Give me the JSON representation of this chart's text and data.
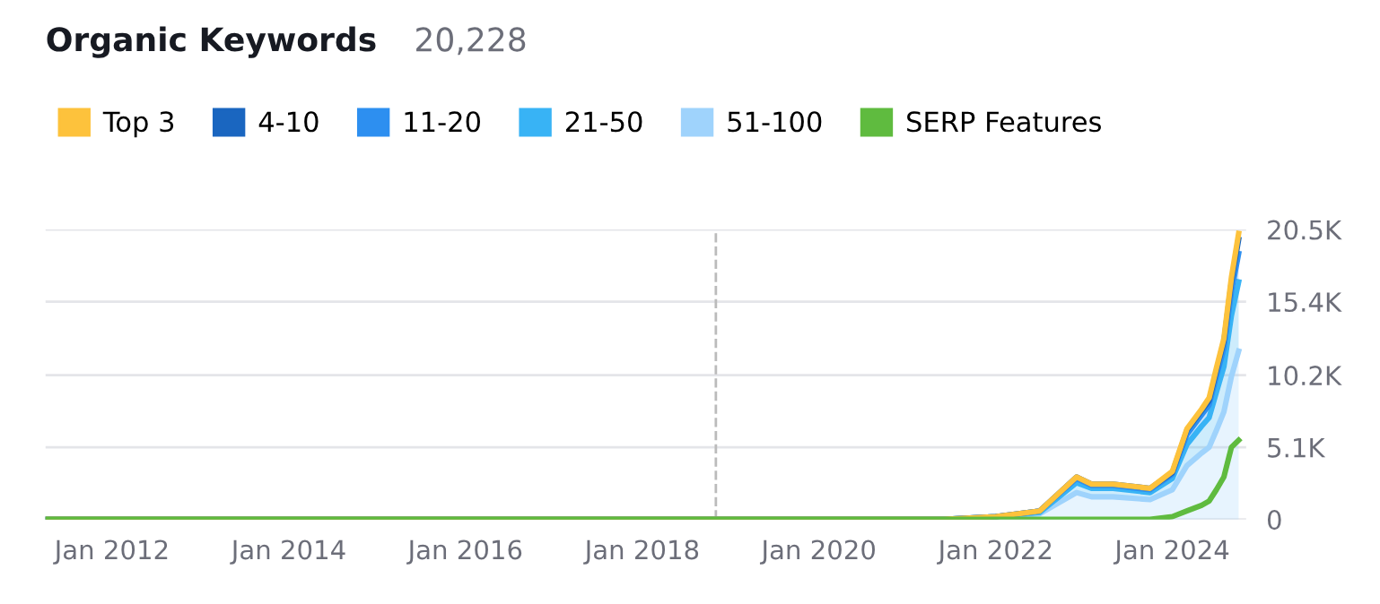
{
  "chart_data": {
    "type": "area",
    "title": "Organic Keywords",
    "subtitle": "20,228",
    "stacked": true,
    "x": [
      "2011-04",
      "2016-06",
      "2021-06",
      "2022-01",
      "2022-07",
      "2022-12",
      "2023-02",
      "2023-05",
      "2023-10",
      "2024-01",
      "2024-03",
      "2024-05",
      "2024-06",
      "2024-07",
      "2024-08",
      "2024-09",
      "2024-10"
    ],
    "series": [
      {
        "name": "51-100",
        "color": "#9fd3fc",
        "values": [
          0,
          0,
          0,
          200,
          400,
          1900,
          1600,
          1600,
          1400,
          2100,
          3800,
          4700,
          5100,
          6300,
          7600,
          10100,
          11900
        ]
      },
      {
        "name": "21-50",
        "color": "#38b3f5",
        "values": [
          0,
          0,
          0,
          0,
          100,
          700,
          600,
          600,
          500,
          800,
          1500,
          1900,
          2100,
          2700,
          3200,
          4300,
          4900
        ]
      },
      {
        "name": "11-20",
        "color": "#2d8ff0",
        "values": [
          0,
          0,
          0,
          0,
          100,
          300,
          200,
          200,
          200,
          300,
          700,
          800,
          900,
          1100,
          1300,
          1700,
          2000
        ]
      },
      {
        "name": "4-10",
        "color": "#1a66c0",
        "values": [
          0,
          0,
          0,
          0,
          0,
          100,
          100,
          100,
          100,
          100,
          300,
          300,
          300,
          400,
          500,
          700,
          1000
        ]
      },
      {
        "name": "Top 3",
        "color": "#fdc23c",
        "values": [
          0,
          0,
          0,
          0,
          0,
          0,
          0,
          0,
          0,
          100,
          100,
          100,
          200,
          200,
          200,
          300,
          428
        ]
      },
      {
        "name": "SERP Features",
        "type": "line",
        "color": "#5fbb3f",
        "values": [
          0,
          0,
          0,
          0,
          0,
          0,
          0,
          0,
          0,
          200,
          600,
          1000,
          1300,
          2100,
          3000,
          5100,
          5600
        ]
      }
    ],
    "xlim": [
      "2011-04",
      "2024-11"
    ],
    "xticks": [
      {
        "value": "2012-01",
        "label": "Jan 2012"
      },
      {
        "value": "2014-01",
        "label": "Jan 2014"
      },
      {
        "value": "2016-01",
        "label": "Jan 2016"
      },
      {
        "value": "2018-01",
        "label": "Jan 2018"
      },
      {
        "value": "2020-01",
        "label": "Jan 2020"
      },
      {
        "value": "2022-01",
        "label": "Jan 2022"
      },
      {
        "value": "2024-01",
        "label": "Jan 2024"
      }
    ],
    "ylim": [
      0,
      20500
    ],
    "yticks": [
      0,
      {
        "value": 5100,
        "label": "5.1K"
      },
      {
        "value": 10200,
        "label": "10.2K"
      },
      {
        "value": 15400,
        "label": "15.4K"
      },
      {
        "value": 20500,
        "label": "20.5K"
      }
    ],
    "ref_lines": [
      {
        "axis": "x",
        "value": "2018-11",
        "color": "#bbbbbb",
        "line_style": "dashed"
      }
    ],
    "grid": "y",
    "legend": "top left"
  }
}
